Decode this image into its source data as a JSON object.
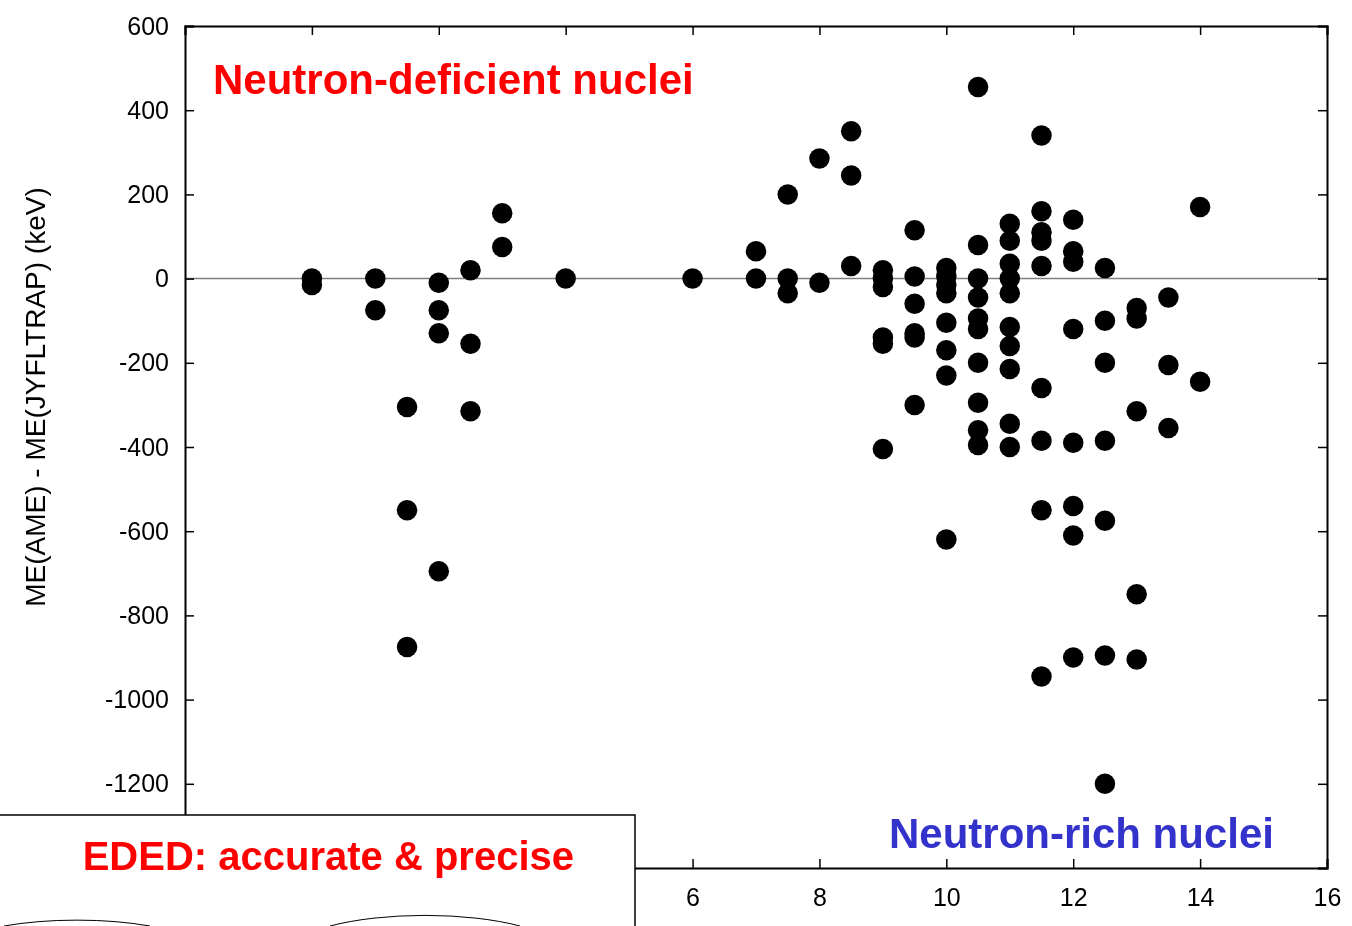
{
  "chart_data": {
    "type": "scatter",
    "ylabel": "ME(AME) - ME(JYFLTRAP) (keV)",
    "xlim": [
      -2,
      16
    ],
    "xticks": [
      {
        "value": -2,
        "label": null
      },
      {
        "value": 0,
        "label": null
      },
      {
        "value": 2,
        "label": null
      },
      {
        "value": 4,
        "label": null
      },
      6,
      8,
      10,
      12,
      14,
      16
    ],
    "ylim": [
      -1400,
      600
    ],
    "yticks": [
      {
        "value": -1400,
        "label": null
      },
      -1200,
      -1000,
      -800,
      -600,
      -400,
      -200,
      0,
      200,
      400,
      600
    ],
    "grid": false,
    "marker": "circle",
    "ref_lines": [
      {
        "axis": "y",
        "value": 0,
        "color": "#808080"
      }
    ],
    "annotations": [
      "Neutron-deficient nuclei",
      "Neutron-rich nuclei",
      "EDED: accurate & precise"
    ],
    "series": [
      {
        "color": "#000000",
        "x": [
          0,
          0,
          1,
          1,
          1.5,
          1.5,
          1.5,
          2,
          2,
          2,
          2,
          2.5,
          2.5,
          2.5,
          3,
          3,
          4,
          6,
          7,
          7,
          7.5,
          7.5,
          7.5,
          8,
          8,
          8.5,
          8.5,
          8.5,
          9,
          9,
          9,
          9,
          9,
          9,
          9.5,
          9.5,
          9.5,
          9.5,
          9.5,
          9.5,
          10,
          10,
          10,
          10,
          10,
          10,
          10,
          10,
          10.5,
          10.5,
          10.5,
          10.5,
          10.5,
          10.5,
          10.5,
          10.5,
          10.5,
          10.5,
          11,
          11,
          11,
          11,
          11,
          11,
          11,
          11,
          11,
          11,
          11.5,
          11.5,
          11.5,
          11.5,
          11.5,
          11.5,
          11.5,
          11.5,
          11.5,
          12,
          12,
          12,
          12,
          12,
          12,
          12,
          12,
          12.5,
          12.5,
          12.5,
          12.5,
          12.5,
          12.5,
          12.5,
          13,
          13,
          13,
          13,
          13,
          13.5,
          13.5,
          13.5,
          14,
          14
        ],
        "values": [
          0,
          -15,
          0,
          -75,
          -305,
          -550,
          -875,
          -10,
          -75,
          -130,
          -695,
          20,
          -155,
          -315,
          155,
          75,
          0,
          0,
          65,
          0,
          200,
          0,
          -35,
          285,
          -10,
          350,
          245,
          30,
          20,
          0,
          -20,
          -140,
          -155,
          -405,
          115,
          5,
          -60,
          -130,
          -140,
          -300,
          25,
          5,
          -15,
          -35,
          -105,
          -170,
          -230,
          -620,
          455,
          80,
          0,
          -45,
          -95,
          -120,
          -200,
          -295,
          -360,
          -395,
          130,
          90,
          35,
          0,
          -35,
          -115,
          -160,
          -215,
          -345,
          -400,
          340,
          160,
          110,
          90,
          30,
          -260,
          -385,
          -550,
          -945,
          140,
          65,
          40,
          -120,
          -390,
          -540,
          -610,
          -900,
          25,
          -100,
          -200,
          -385,
          -575,
          -895,
          -1200,
          -70,
          -95,
          -315,
          -750,
          -905,
          -45,
          -205,
          -355,
          170,
          -245
        ]
      }
    ]
  }
}
